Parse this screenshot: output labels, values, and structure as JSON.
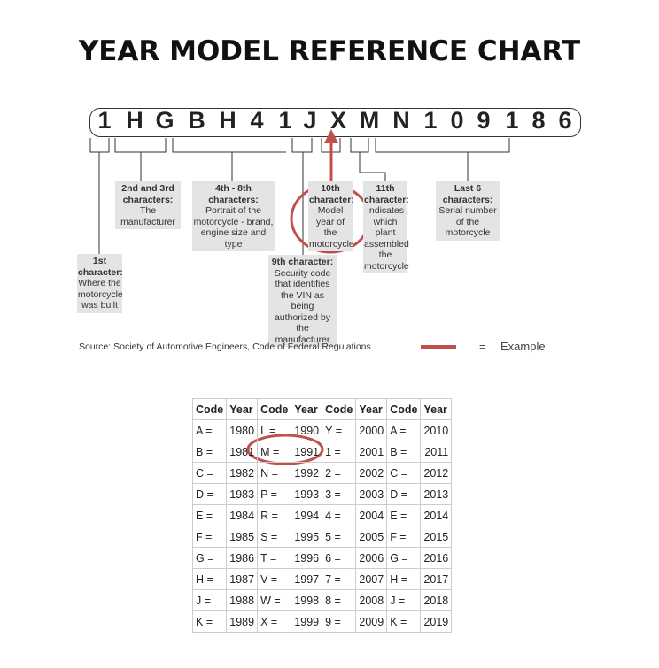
{
  "title": "YEAR MODEL REFERENCE CHART",
  "vin": [
    "1",
    "H",
    "G",
    "B",
    "H",
    "4",
    "1",
    "J",
    "X",
    "M",
    "N",
    "1",
    "0",
    "9",
    "1",
    "8",
    "6"
  ],
  "labels": {
    "c1": {
      "head": "1st character:",
      "body": "Where the motorcycle was built"
    },
    "c23": {
      "head": "2nd and 3rd characters:",
      "body": "The manufacturer"
    },
    "c48": {
      "head": "4th - 8th characters:",
      "body": "Portrait of the motorcycle - brand, engine size and type"
    },
    "c9": {
      "head": "9th character:",
      "body": "Security code that identifies the VIN as being authorized by the manufacturer"
    },
    "c10": {
      "head": "10th character:",
      "body": "Model year of the motorcycle"
    },
    "c11": {
      "head": "11th character:",
      "body": "Indicates which plant assembled the motorcycle"
    },
    "c6": {
      "head": "Last 6 characters:",
      "body": "Serial number of the motorcycle"
    }
  },
  "source": "Source:  Society of Automotive Engineers, Code of Federal Regulations",
  "legend": {
    "eq": "=",
    "label": "Example",
    "color": "#c0504d"
  },
  "table": {
    "headers": [
      "Code",
      "Year",
      "Code",
      "Year",
      "Code",
      "Year",
      "Code",
      "Year"
    ],
    "rows": [
      [
        "A =",
        "1980",
        "L =",
        "1990",
        "Y =",
        "2000",
        "A =",
        "2010"
      ],
      [
        "B =",
        "1981",
        "M =",
        "1991",
        "1 =",
        "2001",
        "B =",
        "2011"
      ],
      [
        "C =",
        "1982",
        "N =",
        "1992",
        "2 =",
        "2002",
        "C =",
        "2012"
      ],
      [
        "D =",
        "1983",
        "P =",
        "1993",
        "3 =",
        "2003",
        "D =",
        "2013"
      ],
      [
        "E =",
        "1984",
        "R =",
        "1994",
        "4 =",
        "2004",
        "E =",
        "2014"
      ],
      [
        "F =",
        "1985",
        "S =",
        "1995",
        "5 =",
        "2005",
        "F =",
        "2015"
      ],
      [
        "G =",
        "1986",
        "T =",
        "1996",
        "6 =",
        "2006",
        "G =",
        "2016"
      ],
      [
        "H =",
        "1987",
        "V =",
        "1997",
        "7 =",
        "2007",
        "H =",
        "2017"
      ],
      [
        "J =",
        "1988",
        "W =",
        "1998",
        "8 =",
        "2008",
        "J =",
        "2018"
      ],
      [
        "K =",
        "1989",
        "X =",
        "1999",
        "9 =",
        "2009",
        "K =",
        "2019"
      ]
    ]
  }
}
